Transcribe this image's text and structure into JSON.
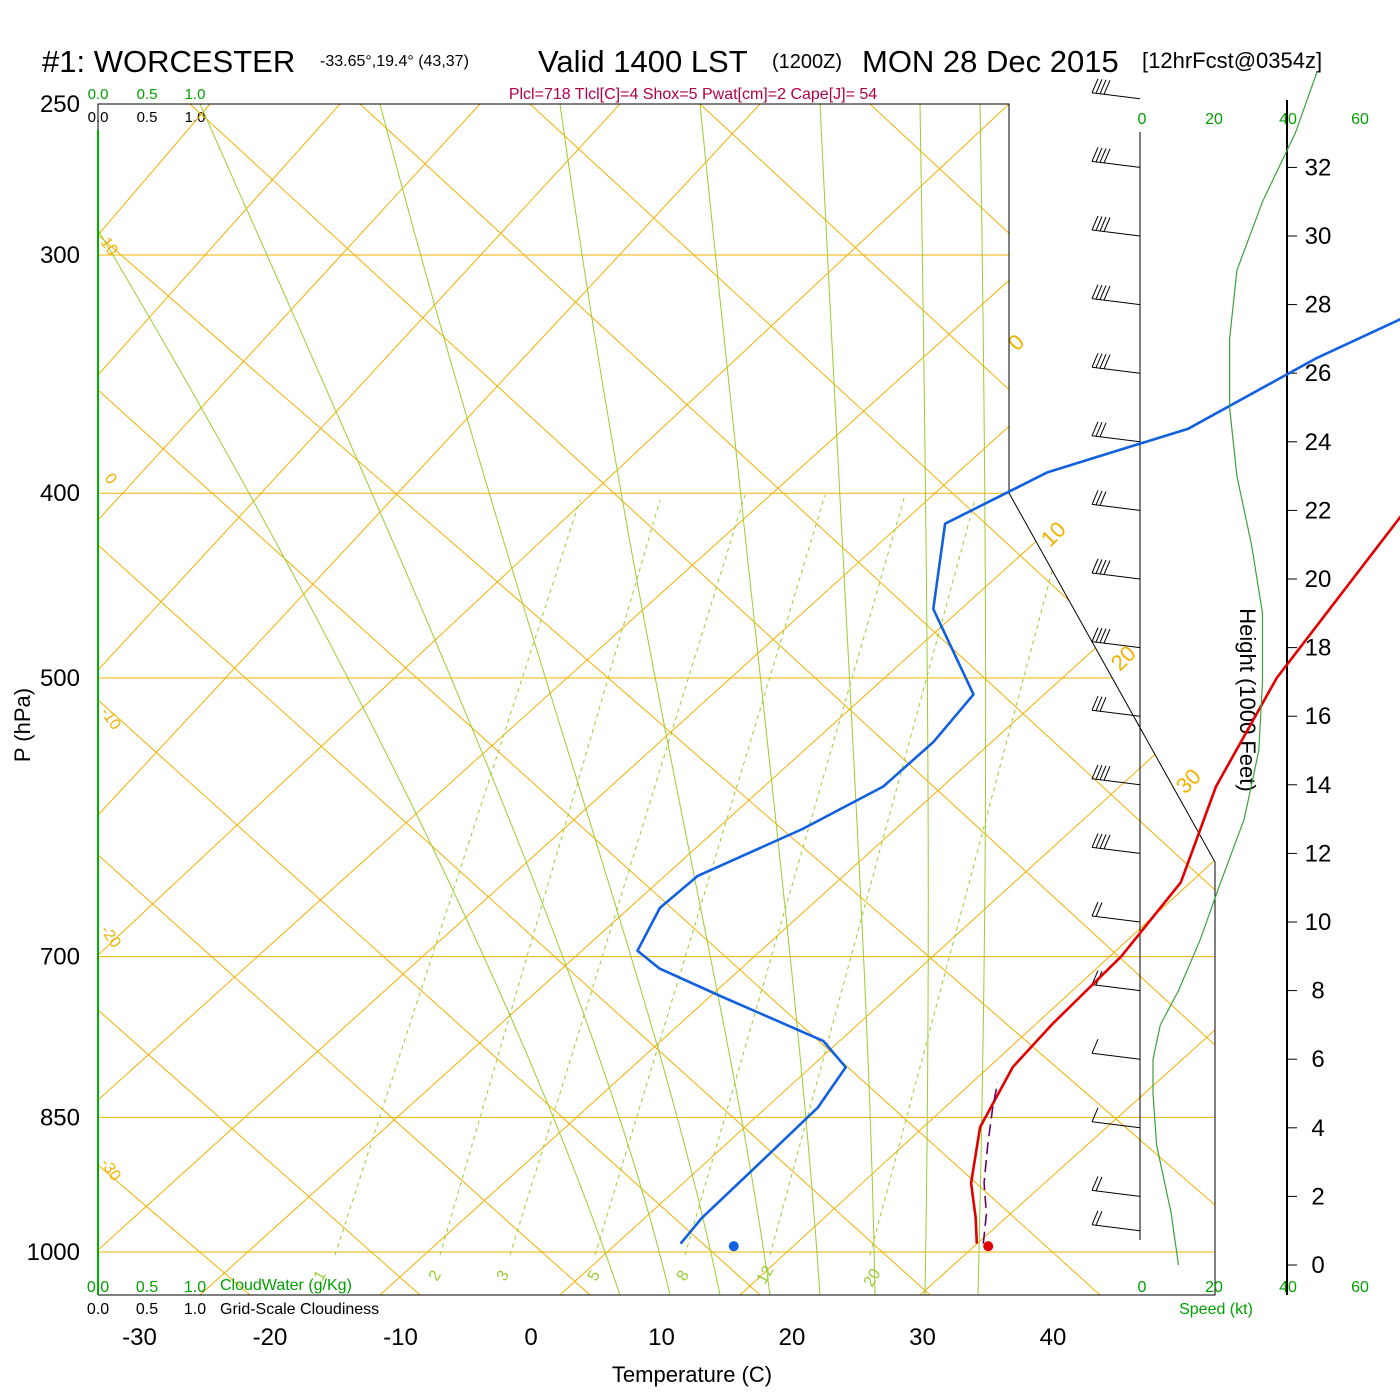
{
  "header": {
    "station": "#1: WORCESTER",
    "coords": "-33.65°,19.4° (43,37)",
    "valid": "Valid 1400 LST",
    "zulu": "(1200Z)",
    "date": "MON 28 Dec 2015",
    "forecast": "[12hrFcst@0354z]",
    "indices": "Plcl=718 Tlcl[C]=4 Shox=5 Pwat[cm]=2 Cape[J]= 54"
  },
  "chart_data": {
    "type": "line",
    "xlabel": "Temperature (C)",
    "ylabel": "P (hPa)",
    "right_axis_label": "Height (1000 Feet)",
    "x_ticks": [
      "-30",
      "-20",
      "-10",
      "0",
      "10",
      "20",
      "30",
      "40"
    ],
    "p_ticks": [
      "250",
      "300",
      "400",
      "500",
      "700",
      "850",
      "1000"
    ],
    "height_ticks": [
      "0",
      "2",
      "4",
      "6",
      "8",
      "10",
      "12",
      "14",
      "16",
      "18",
      "20",
      "22",
      "24",
      "26",
      "28",
      "30",
      "32"
    ],
    "dry_adiabat_labels": [
      "-30",
      "-20",
      "-10",
      "0",
      "10",
      "0",
      "10",
      "20",
      "30"
    ],
    "mixing_ratio_labels": [
      "1",
      "2",
      "3",
      "5",
      "8",
      "12",
      "20"
    ],
    "cloud_water": {
      "label": "CloudWater (g/Kg)",
      "ticks": [
        "0.0",
        "0.5",
        "1.0"
      ]
    },
    "cloudiness": {
      "label": "Grid-Scale Cloudiness",
      "ticks": [
        "0.0",
        "0.5",
        "1.0"
      ]
    },
    "wind_speed": {
      "label": "Speed (kt)",
      "ticks": [
        "0",
        "20",
        "40",
        "60"
      ]
    },
    "series": [
      {
        "kind": "temperature",
        "color": "#e00000",
        "points": [
          [
            33.0,
            990
          ],
          [
            31.0,
            960
          ],
          [
            28.0,
            920
          ],
          [
            24.5,
            860
          ],
          [
            22.5,
            800
          ],
          [
            22.3,
            760
          ],
          [
            22.5,
            700
          ],
          [
            21.5,
            640
          ],
          [
            17.0,
            570
          ],
          [
            13.5,
            500
          ],
          [
            10.5,
            400
          ],
          [
            6.5,
            330
          ],
          [
            3.5,
            290
          ],
          [
            0.5,
            258
          ]
        ]
      },
      {
        "kind": "dewpoint",
        "color": "#1060e0",
        "points": [
          [
            10.3,
            990
          ],
          [
            10.0,
            960
          ],
          [
            10.3,
            900
          ],
          [
            10.6,
            840
          ],
          [
            9.7,
            800
          ],
          [
            6.0,
            775
          ],
          [
            -5.0,
            735
          ],
          [
            -12.0,
            710
          ],
          [
            -15.0,
            695
          ],
          [
            -16.5,
            660
          ],
          [
            -16.0,
            635
          ],
          [
            -11.5,
            600
          ],
          [
            -8.5,
            570
          ],
          [
            -8.0,
            540
          ],
          [
            -8.5,
            510
          ],
          [
            -18.0,
            460
          ],
          [
            -23.5,
            415
          ],
          [
            -19.5,
            390
          ],
          [
            -12.0,
            370
          ],
          [
            -7.5,
            340
          ],
          [
            -3.0,
            320
          ],
          [
            0.0,
            300
          ],
          [
            3.0,
            270
          ],
          [
            2.5,
            258
          ]
        ]
      },
      {
        "kind": "parcel",
        "color": "#6a006a",
        "points": [
          [
            33.5,
            990
          ],
          [
            31.5,
            955
          ],
          [
            29.0,
            920
          ],
          [
            26.5,
            880
          ],
          [
            24.0,
            840
          ],
          [
            22.5,
            815
          ]
        ]
      },
      {
        "kind": "height",
        "color": "#3ca03c",
        "points": [
          [
            10,
            0
          ],
          [
            8,
            1.5
          ],
          [
            4,
            3.5
          ],
          [
            3,
            5
          ],
          [
            3,
            6
          ],
          [
            5,
            7
          ],
          [
            10,
            8
          ],
          [
            16,
            9.5
          ],
          [
            21,
            11
          ],
          [
            28,
            13
          ],
          [
            32,
            15
          ],
          [
            33,
            17
          ],
          [
            33,
            19
          ],
          [
            30,
            21
          ],
          [
            26,
            23
          ],
          [
            24,
            25
          ],
          [
            24,
            27
          ],
          [
            26,
            29
          ],
          [
            33,
            31
          ],
          [
            42,
            33
          ],
          [
            48,
            34.8
          ]
        ]
      }
    ],
    "surface_markers": [
      {
        "kind": "dewpoint",
        "color": "#1060e0",
        "value": 15.0,
        "pressure": 993
      },
      {
        "kind": "temperature",
        "color": "#e00000",
        "value": 34.5,
        "pressure": 993
      }
    ],
    "wind_barbs": [
      {
        "height_kft": 34,
        "speed_kt": 40
      },
      {
        "height_kft": 32,
        "speed_kt": 40
      },
      {
        "height_kft": 30,
        "speed_kt": 40
      },
      {
        "height_kft": 28,
        "speed_kt": 40
      },
      {
        "height_kft": 26,
        "speed_kt": 35
      },
      {
        "height_kft": 24,
        "speed_kt": 30
      },
      {
        "height_kft": 22,
        "speed_kt": 25
      },
      {
        "height_kft": 20,
        "speed_kt": 35
      },
      {
        "height_kft": 18,
        "speed_kt": 40
      },
      {
        "height_kft": 16,
        "speed_kt": 30
      },
      {
        "height_kft": 14,
        "speed_kt": 35
      },
      {
        "height_kft": 12,
        "speed_kt": 40
      },
      {
        "height_kft": 10,
        "speed_kt": 20
      },
      {
        "height_kft": 8,
        "speed_kt": 15
      },
      {
        "height_kft": 6,
        "speed_kt": 10
      },
      {
        "height_kft": 4,
        "speed_kt": 10
      },
      {
        "height_kft": 2,
        "speed_kt": 20
      },
      {
        "height_kft": 1,
        "speed_kt": 20
      }
    ],
    "colors": {
      "isobar": "#f2b000",
      "dry_adiabat": "#f2b000",
      "moist_adiabat": "#9acd32",
      "mixing_ratio": "#9acd32",
      "axis_green": "#00a000",
      "indices": "#b0004a"
    }
  }
}
